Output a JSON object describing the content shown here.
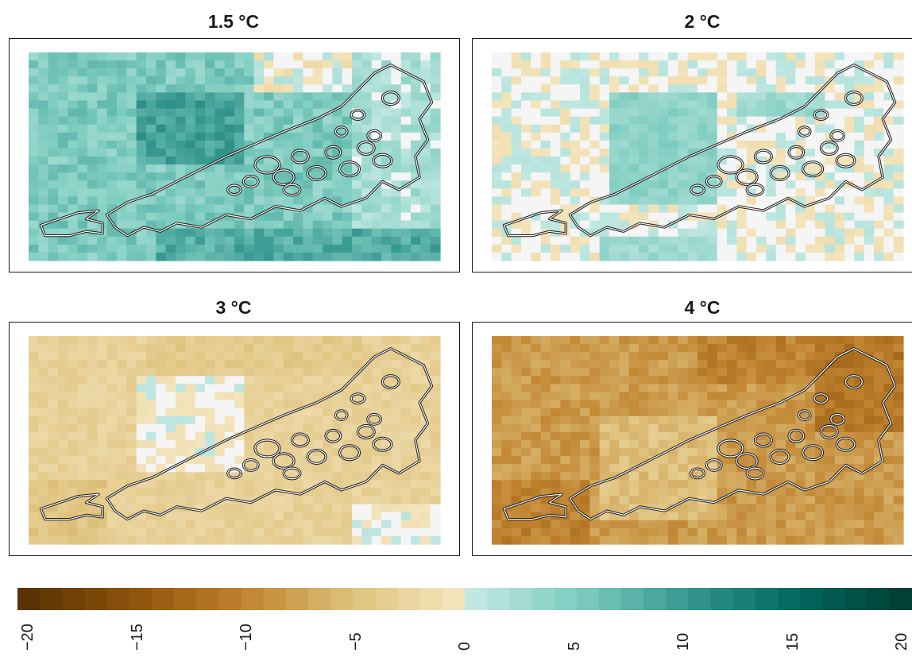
{
  "panels": [
    {
      "title": "1.5 °C"
    },
    {
      "title": "2 °C"
    },
    {
      "title": "3 °C"
    },
    {
      "title": "4 °C"
    }
  ],
  "legend": {
    "min": -20,
    "max": 20,
    "ticks": [
      "−20",
      "−15",
      "−10",
      "−5",
      "0",
      "5",
      "10",
      "15",
      "20"
    ],
    "negative_color": "#8c510a",
    "positive_color": "#01665e",
    "neutral_color": "#f5f5f5"
  }
}
